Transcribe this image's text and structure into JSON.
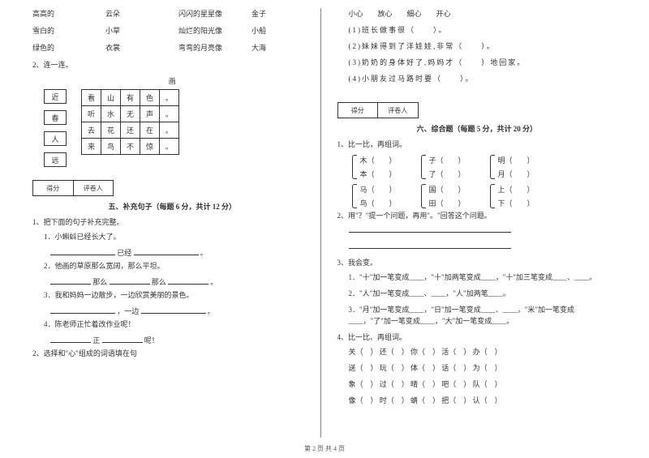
{
  "left": {
    "matching": {
      "rows": [
        [
          "高高的",
          "云朵",
          "闪闪的星星像",
          "金子"
        ],
        [
          "雪白的",
          "小草",
          "灿烂的阳光像",
          "小船"
        ],
        [
          "绿色的",
          "衣裳",
          "弯弯的月亮像",
          "大海"
        ]
      ]
    },
    "q2_label": "2、连一连。",
    "diagram_title": "画",
    "side_chars": [
      "近",
      "春",
      "人",
      "远"
    ],
    "grid": [
      [
        "看",
        "山",
        "有",
        "色",
        "。"
      ],
      [
        "听",
        "水",
        "无",
        "声",
        "。"
      ],
      [
        "去",
        "花",
        "还",
        "在",
        "。"
      ],
      [
        "来",
        "鸟",
        "不",
        "惊",
        "。"
      ]
    ],
    "score_labels": [
      "得分",
      "评卷人"
    ],
    "sec5_title": "五、补充句子（每题 6 分，共计 12 分）",
    "q5_1": "1、把下面的句子补充完整。",
    "s5_1": "1．小蝌蚪已经长大了。",
    "s5_1_b": "已经",
    "s5_2": "2．他画的草原那么宽阔，那么平坦。",
    "s5_2_a": "那么",
    "s5_2_b": "那么",
    "s5_3": "3．我和妈妈一边散步，一边欣赏美丽的景色。",
    "s5_3_a": "，一边",
    "s5_4": "4．陈老师正忙着改作业呢！",
    "s5_4_a": "正",
    "s5_4_b": "呢！",
    "q5_2": "2、选择和\"心\"组成的词语填在句"
  },
  "right": {
    "top_words": "小心　　放心　　细心　　开心",
    "blanks": [
      "(1)班长做事很（　　）。",
      "(2)妹妹得到了洋娃娃,非常（　　）。",
      "(3)奶奶的身体好了,妈妈才（　　）地回家。",
      "(4)小朋友过马路时要（　　）。"
    ],
    "score_labels": [
      "得分",
      "评卷人"
    ],
    "sec6_title": "六、综合题（每题 5 分，共计 20 分）",
    "q6_1": "1、比一比，再组词。",
    "pairs": [
      [
        [
          "木（　　）",
          "本（　　）"
        ],
        [
          "子（　　）",
          "了（　　）"
        ],
        [
          "明（　　）",
          "月（　　）"
        ]
      ],
      [
        [
          "马（　　）",
          "鸟（　　）"
        ],
        [
          "国（　　）",
          "田（　　）"
        ],
        [
          "上（　　）",
          "下（　　）"
        ]
      ]
    ],
    "q6_2": "2、用\"？\"提一个问题，再用\"。\"回答这个问题。",
    "q6_3": "3、我会变。",
    "q6_3_lines": [
      "1．\"十\"加一笔变成____，\"十\"加两笔变成____，\"十\"加三笔变成____、____。",
      "2．\"人\"加一笔变成____、____，\"人\"加两笔____。",
      "3．\"月\"加一笔变成____，\"日\"加一笔变成____、____，\"米\"加一笔变成____，\"了\"加一笔变成____，\"大\"加一笔变成____。"
    ],
    "q6_4": "4、比一比、再组词。",
    "word_rows": [
      [
        "关（　）",
        "还（　）",
        "你（　）",
        "活（　）",
        "办（　）"
      ],
      [
        "送（　）",
        "玩（　）",
        "体（　）",
        "话（　）",
        "为（　）"
      ],
      [
        "象（　）",
        "过（　）",
        "晴（　）",
        "吧（　）",
        "队（　）"
      ],
      [
        "像（　）",
        "时（　）",
        "蜻（　）",
        "把（　）",
        "认（　）"
      ]
    ]
  },
  "footer": "第 2 页  共 4 页"
}
